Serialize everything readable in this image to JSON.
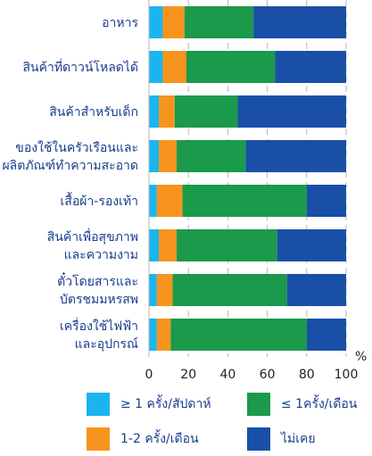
{
  "chart_data": {
    "type": "bar",
    "orientation": "horizontal",
    "stacked": true,
    "categories": [
      [
        "อาหาร"
      ],
      [
        "สินค้าที่ดาวน์โหลดได้"
      ],
      [
        "สินค้าสำหรับเด็ก"
      ],
      [
        "ของใช้ในครัวเรือนและ",
        "ผลิตภัณฑ์ทำความสะอาด"
      ],
      [
        "เสื้อผ้า-รองเท้า"
      ],
      [
        "สินค้าเพื่อสุขภาพ",
        "และความงาม"
      ],
      [
        "ตั๋วโดยสารและ",
        "บัตรชมมหรสพ"
      ],
      [
        "เครื่องใช้ไฟฟ้า",
        "และอุปกรณ์"
      ]
    ],
    "series": [
      {
        "name": "≥ 1 ครั้ง/สัปดาห์",
        "color": "#1ab5ef",
        "values": [
          7,
          7,
          5,
          5,
          4,
          5,
          4,
          4
        ]
      },
      {
        "name": "1-2 ครั้ง/เดือน",
        "color": "#f7941d",
        "values": [
          11,
          12,
          8,
          9,
          13,
          9,
          8,
          7
        ]
      },
      {
        "name": "≤ 1ครั้ง/เดือน",
        "color": "#1a9a4a",
        "values": [
          35,
          45,
          32,
          35,
          63,
          51,
          58,
          69
        ]
      },
      {
        "name": "ไม่เคย",
        "color": "#1a4fa8",
        "values": [
          47,
          36,
          55,
          51,
          20,
          35,
          30,
          20
        ]
      }
    ],
    "xlim": [
      0,
      100
    ],
    "xticks": [
      "0",
      "20",
      "40",
      "60",
      "80",
      "100"
    ],
    "unit": "%",
    "grid": true,
    "legend_position": "bottom"
  }
}
